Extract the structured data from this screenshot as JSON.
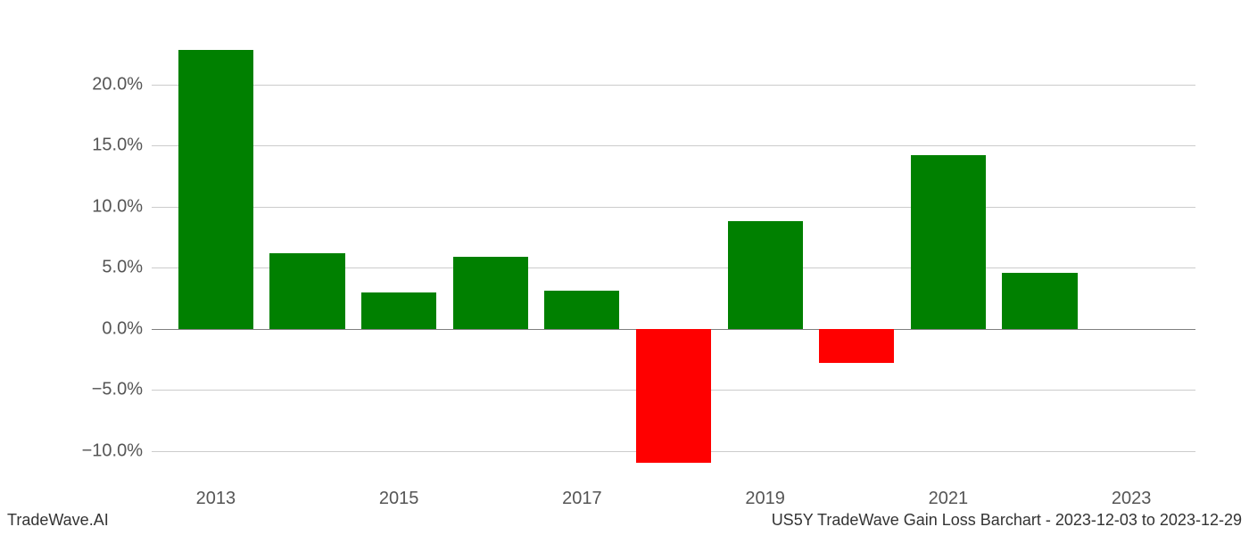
{
  "chart": {
    "type": "bar",
    "years": [
      2013,
      2014,
      2015,
      2016,
      2017,
      2018,
      2019,
      2020,
      2021,
      2022
    ],
    "values": [
      22.8,
      6.2,
      3.0,
      5.9,
      3.1,
      -11.0,
      8.8,
      -2.8,
      14.2,
      4.6
    ],
    "positive_color": "#008000",
    "negative_color": "#ff0000",
    "background_color": "#ffffff",
    "grid_color": "#cccccc",
    "zero_line_color": "#808080",
    "tick_label_color": "#555555",
    "footer_color": "#333333",
    "ylim": [
      -12.5,
      24
    ],
    "yticks": [
      -10,
      -5,
      0,
      5,
      10,
      15,
      20
    ],
    "ytick_labels": [
      "−10.0%",
      "−5.0%",
      "0.0%",
      "5.0%",
      "10.0%",
      "15.0%",
      "20.0%"
    ],
    "xticks": [
      2013,
      2015,
      2017,
      2019,
      2021,
      2023
    ],
    "xtick_labels": [
      "2013",
      "2015",
      "2017",
      "2019",
      "2021",
      "2023"
    ],
    "xlim": [
      2012.3,
      2023.7
    ],
    "bar_width": 0.82,
    "tick_fontsize": 20,
    "footer_fontsize": 18
  },
  "footer": {
    "left": "TradeWave.AI",
    "right": "US5Y TradeWave Gain Loss Barchart - 2023-12-03 to 2023-12-29"
  }
}
